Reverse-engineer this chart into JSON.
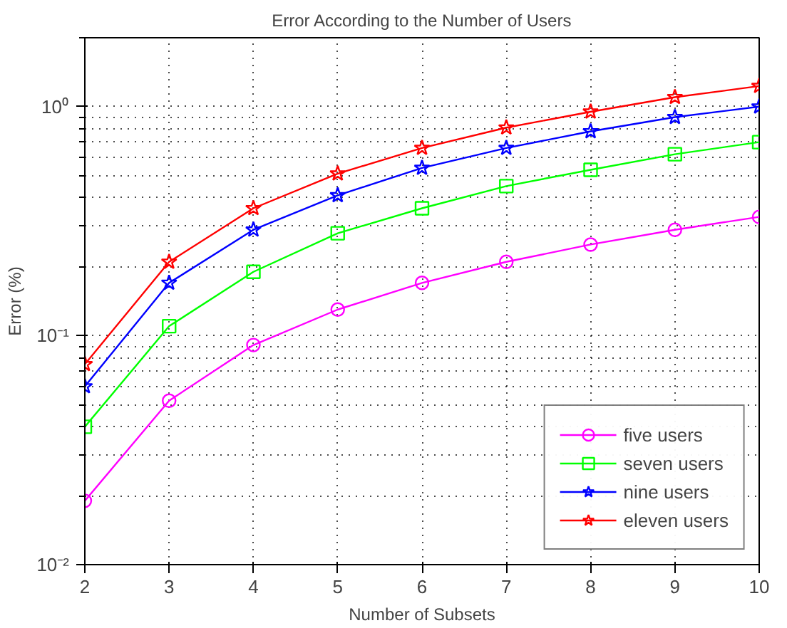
{
  "chart_data": {
    "type": "line",
    "title": "Error According to the Number of Users",
    "xlabel": "Number of Subsets",
    "ylabel": "Error (%)",
    "x": [
      2,
      3,
      4,
      5,
      6,
      7,
      8,
      9,
      10
    ],
    "series": [
      {
        "name": "five users",
        "color": "#ff00ff",
        "marker": "circle",
        "values": [
          0.019,
          0.052,
          0.091,
          0.13,
          0.17,
          0.21,
          0.25,
          0.29,
          0.33
        ]
      },
      {
        "name": "seven users",
        "color": "#00ff00",
        "marker": "square",
        "values": [
          0.04,
          0.11,
          0.19,
          0.28,
          0.36,
          0.45,
          0.53,
          0.62,
          0.7
        ]
      },
      {
        "name": "nine users",
        "color": "#0000ff",
        "marker": "star",
        "values": [
          0.06,
          0.17,
          0.29,
          0.41,
          0.54,
          0.66,
          0.78,
          0.9,
          1.0
        ]
      },
      {
        "name": "eleven users",
        "color": "#ff0000",
        "marker": "star",
        "values": [
          0.075,
          0.21,
          0.36,
          0.51,
          0.66,
          0.81,
          0.95,
          1.1,
          1.23
        ]
      }
    ],
    "log": "y",
    "xlim": [
      2,
      10
    ],
    "ylim": [
      0.01,
      2
    ],
    "xticks": [
      2,
      3,
      4,
      5,
      6,
      7,
      8,
      9,
      10
    ],
    "yticks": [
      {
        "value": 0.01,
        "label": "10⁻²"
      },
      {
        "value": 0.1,
        "label": "10⁻¹"
      },
      {
        "value": 1,
        "label": "10⁰"
      }
    ],
    "grid": true,
    "legend": "bottom right",
    "line_style": "solid"
  }
}
